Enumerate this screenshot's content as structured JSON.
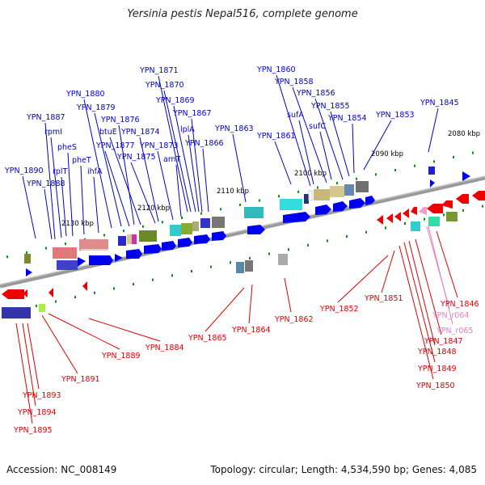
{
  "title": "Yersinia pestis Nepal516, complete genome",
  "footer": {
    "accession": "Accession: NC_008149",
    "summary": "Topology: circular; Length: 4,534,590 bp; Genes: 4,085"
  },
  "colors": {
    "forward_label": "#0000cc",
    "reverse_label": "#dd0000",
    "rna_label": "#e080c0",
    "backbone": "#808080",
    "tick": "#118811"
  },
  "kbp_labels": [
    "2130 kbp",
    "2120 kbp",
    "2110 kbp",
    "2100 kbp",
    "2090 kbp",
    "2080 kbp"
  ],
  "top_labels": [
    "YPN_1890",
    "YPN_1888",
    "YPN_1887",
    "rpmI",
    "rplT",
    "pheS",
    "pheT",
    "ihfA",
    "YPN_1880",
    "YPN_1879",
    "YPN_1877",
    "YPN_1876",
    "btuE",
    "YPN_1875",
    "YPN_1874",
    "YPN_1873",
    "YPN_1871",
    "YPN_1870",
    "YPN_1869",
    "YPN_1867",
    "lplA",
    "arnT",
    "YPN_1866",
    "YPN_1863",
    "YPN_1860",
    "YPN_1858",
    "YPN_1861",
    "sufA",
    "YPN_1856",
    "YPN_1855",
    "sufC",
    "YPN_1854",
    "YPN_1853",
    "YPN_1845"
  ],
  "bottom_labels": [
    "YPN_1895",
    "YPN_1894",
    "YPN_1893",
    "YPN_1891",
    "YPN_1889",
    "YPN_1884",
    "YPN_1865",
    "YPN_1864",
    "YPN_1862",
    "YPN_1852",
    "YPN_1851",
    "YPN_1846",
    "YPN_r064",
    "YPN_r065",
    "YPN_1847",
    "YPN_1848",
    "YPN_1849",
    "YPN_1850"
  ]
}
